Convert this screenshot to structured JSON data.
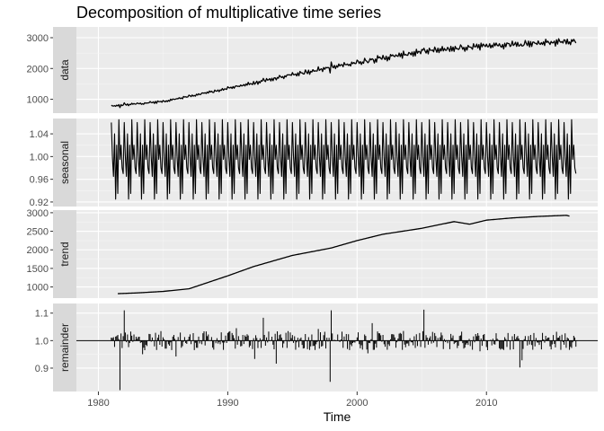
{
  "chart_data": {
    "type": "line",
    "title": "Decomposition of multiplicative time series",
    "xlabel": "Time",
    "xlim": [
      1978.3,
      2018.6
    ],
    "x_ticks": [
      1980,
      1990,
      2000,
      2010
    ],
    "x_tick_labels": [
      "1980",
      "1990",
      "2000",
      "2010"
    ],
    "x_start": 1981.0,
    "x_step": 0.08333,
    "n_points": 432,
    "panels": [
      {
        "name": "data",
        "ylim": [
          550,
          3350
        ],
        "y_ticks": [
          1000,
          2000,
          3000
        ],
        "y_tick_labels": [
          "1000",
          "2000",
          "3000"
        ],
        "keypoints": [
          [
            1981,
            780
          ],
          [
            1985,
            930
          ],
          [
            1990,
            1350
          ],
          [
            1995,
            1800
          ],
          [
            2000,
            2200
          ],
          [
            2005,
            2550
          ],
          [
            2010,
            2750
          ],
          [
            2015,
            2850
          ],
          [
            2016.9,
            2900
          ]
        ]
      },
      {
        "name": "seasonal",
        "ylim": [
          0.912,
          1.067
        ],
        "y_ticks": [
          0.92,
          0.96,
          1.0,
          1.04
        ],
        "y_tick_labels": [
          "0.92",
          "0.96",
          "1.00",
          "1.04"
        ],
        "seasonal_pattern": [
          1.06,
          1.0,
          0.965,
          1.04,
          0.925,
          1.02,
          0.935,
          1.065,
          0.995,
          1.02,
          0.98,
          0.97
        ]
      },
      {
        "name": "trend",
        "ylim": [
          700,
          3070
        ],
        "y_ticks": [
          1000,
          1500,
          2000,
          2500,
          3000
        ],
        "y_tick_labels": [
          "1000",
          "1500",
          "2000",
          "2500",
          "3000"
        ],
        "keypoints": [
          [
            1981.5,
            820
          ],
          [
            1983,
            840
          ],
          [
            1985,
            880
          ],
          [
            1987,
            950
          ],
          [
            1990,
            1300
          ],
          [
            1992,
            1550
          ],
          [
            1995,
            1850
          ],
          [
            1998,
            2050
          ],
          [
            2000,
            2250
          ],
          [
            2002,
            2420
          ],
          [
            2005,
            2580
          ],
          [
            2007.5,
            2760
          ],
          [
            2008.7,
            2690
          ],
          [
            2010,
            2800
          ],
          [
            2012,
            2860
          ],
          [
            2014,
            2900
          ],
          [
            2016.2,
            2930
          ],
          [
            2016.4,
            2910
          ]
        ]
      },
      {
        "name": "remainder",
        "ylim": [
          0.815,
          1.135
        ],
        "baseline": 1.0,
        "y_ticks": [
          0.9,
          1.0,
          1.1
        ],
        "y_tick_labels": [
          "0.9",
          "1.0",
          "1.1"
        ]
      }
    ]
  }
}
